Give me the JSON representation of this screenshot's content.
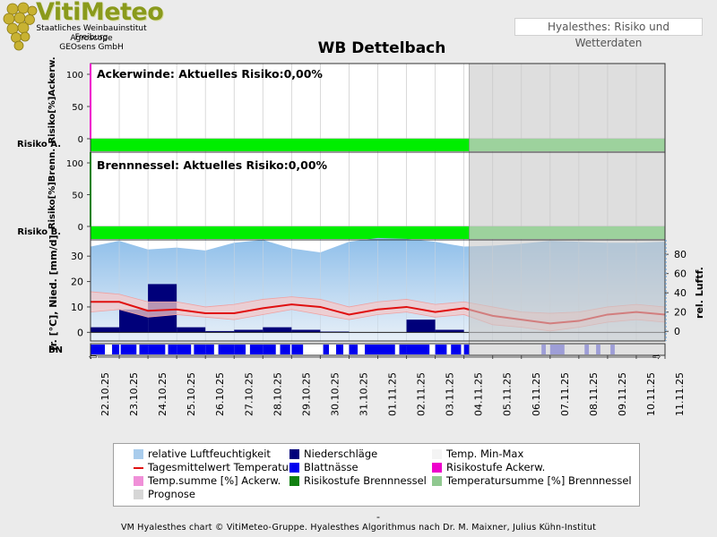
{
  "logo": {
    "brand": "VitiMeteo",
    "line1": "Staatliches Weinbauinstitut Freiburg",
    "line2": "Agroscope",
    "line3": "GEOsens GmbH",
    "icon": "grape-cluster-icon"
  },
  "page_badge": "Hyalesthes: Risiko und Wetterdaten",
  "title": "WB Dettelbach",
  "panels": {
    "ackerwinde": {
      "label": "Ackerwinde: Aktuelles Risiko:0,00%",
      "ylabel": "Risiko[%]Ackerw.",
      "risk_row_label": "Risiko A.",
      "ticks": [
        "100",
        "50",
        "0"
      ]
    },
    "brennnessel": {
      "label": "Brennnessel: Aktuelles Risiko:0,00%",
      "ylabel": "Risiko[%]Brenn.",
      "risk_row_label": "Risiko B.",
      "ticks": [
        "100",
        "50",
        "0"
      ]
    },
    "weather": {
      "ylabel_left": "Tr. [°C], Nied. [mm/d]",
      "ylabel_right": "rel. Luftf.",
      "left_ticks": [
        "30",
        "20",
        "10",
        "0"
      ],
      "right_ticks": [
        "80",
        "60",
        "40",
        "20",
        "0"
      ],
      "bn_label": "BN"
    }
  },
  "x_axis": {
    "dates": [
      "22.10.25",
      "23.10.25",
      "24.10.25",
      "25.10.25",
      "26.10.25",
      "27.10.25",
      "28.10.25",
      "29.10.25",
      "30.10.25",
      "31.10.25",
      "01.11.25",
      "02.11.25",
      "03.11.25",
      "04.11.25",
      "05.11.25",
      "06.11.25",
      "07.11.25",
      "08.11.25",
      "09.11.25",
      "10.11.25",
      "11.11.25"
    ],
    "forecast_from_index": 13
  },
  "chart_data": {
    "type": "line",
    "x": [
      "22.10.25",
      "23.10.25",
      "24.10.25",
      "25.10.25",
      "26.10.25",
      "27.10.25",
      "28.10.25",
      "29.10.25",
      "30.10.25",
      "31.10.25",
      "01.11.25",
      "02.11.25",
      "03.11.25",
      "04.11.25",
      "05.11.25",
      "06.11.25",
      "07.11.25",
      "08.11.25",
      "09.11.25",
      "10.11.25",
      "11.11.25"
    ],
    "risk_ackerwinde": 0.0,
    "risk_brennnessel": 0.0,
    "series": [
      {
        "name": "Tagesmittelwert Temperatur",
        "unit": "°C",
        "values": [
          12,
          12,
          8.5,
          9,
          7.5,
          7.5,
          9.5,
          11,
          10,
          7,
          9,
          10,
          8,
          9.5,
          6.5,
          5,
          3.5,
          4.5,
          7,
          8,
          7
        ]
      },
      {
        "name": "Temp. Min-Max (max)",
        "unit": "°C",
        "values": [
          16,
          15,
          12,
          12,
          10,
          11,
          13,
          14,
          13,
          10,
          12,
          13,
          11,
          12,
          10,
          8,
          7.5,
          8,
          10,
          11,
          10
        ]
      },
      {
        "name": "Temp. Min-Max (min)",
        "unit": "°C",
        "values": [
          8,
          9,
          6,
          7,
          6,
          5,
          7,
          9,
          7,
          5,
          7,
          8,
          6,
          7,
          3,
          2,
          0.5,
          2,
          4,
          5,
          4
        ]
      },
      {
        "name": "Niederschläge",
        "unit": "mm/d",
        "values": [
          2,
          9,
          19,
          2,
          0.5,
          1,
          2,
          1,
          0.3,
          0,
          0,
          5,
          1,
          0,
          0,
          0,
          0,
          0,
          0,
          0,
          0
        ]
      },
      {
        "name": "relative Luftfeuchtigkeit",
        "unit": "%",
        "values": [
          88,
          94,
          85,
          87,
          84,
          92,
          95,
          86,
          82,
          93,
          97,
          96,
          93,
          88,
          89,
          91,
          94,
          93,
          92,
          92,
          93
        ]
      }
    ],
    "blattnaesse_hours": [
      {
        "d": 0,
        "a": 0.0,
        "b": 0.5
      },
      {
        "d": 0,
        "a": 0.75,
        "b": 1.0
      },
      {
        "d": 1,
        "a": 0.05,
        "b": 0.6
      },
      {
        "d": 1,
        "a": 0.7,
        "b": 1.0
      },
      {
        "d": 2,
        "a": 0.0,
        "b": 0.6
      },
      {
        "d": 2,
        "a": 0.7,
        "b": 1.0
      },
      {
        "d": 3,
        "a": 0.0,
        "b": 0.5
      },
      {
        "d": 3,
        "a": 0.6,
        "b": 1.0
      },
      {
        "d": 4,
        "a": 0.0,
        "b": 0.3
      },
      {
        "d": 4,
        "a": 0.45,
        "b": 1.0
      },
      {
        "d": 5,
        "a": 0.0,
        "b": 0.4
      },
      {
        "d": 5,
        "a": 0.55,
        "b": 1.0
      },
      {
        "d": 6,
        "a": 0.0,
        "b": 0.45
      },
      {
        "d": 6,
        "a": 0.6,
        "b": 0.95
      },
      {
        "d": 7,
        "a": 0.0,
        "b": 0.4
      },
      {
        "d": 8,
        "a": 0.1,
        "b": 0.3
      },
      {
        "d": 8,
        "a": 0.55,
        "b": 0.8
      },
      {
        "d": 9,
        "a": 0.0,
        "b": 0.3
      },
      {
        "d": 9,
        "a": 0.55,
        "b": 1.0
      },
      {
        "d": 10,
        "a": 0.0,
        "b": 0.6
      },
      {
        "d": 10,
        "a": 0.75,
        "b": 1.0
      },
      {
        "d": 11,
        "a": 0.0,
        "b": 0.8
      },
      {
        "d": 12,
        "a": 0.0,
        "b": 0.4
      },
      {
        "d": 12,
        "a": 0.55,
        "b": 0.9
      },
      {
        "d": 13,
        "a": 0.0,
        "b": 0.2
      }
    ],
    "blattnaesse_forecast": [
      {
        "d": 15,
        "a": 0.7,
        "b": 0.85
      },
      {
        "d": 16,
        "a": 0.0,
        "b": 0.5
      },
      {
        "d": 17,
        "a": 0.2,
        "b": 0.35
      },
      {
        "d": 17,
        "a": 0.6,
        "b": 0.75
      },
      {
        "d": 18,
        "a": 0.1,
        "b": 0.25
      }
    ],
    "ylim_temp": [
      -2,
      35
    ],
    "ylim_humidity": [
      -10,
      95
    ]
  },
  "legend": [
    {
      "label": "relative Luftfeuchtigkeit",
      "swatch": "#a9ccec"
    },
    {
      "label": "Niederschläge",
      "swatch": "#00007a"
    },
    {
      "label": "Temp. Min-Max",
      "swatch": "#f4f4f4"
    },
    {
      "label": "Tagesmittelwert Temperatur",
      "swatch": "#e01010"
    },
    {
      "label": "Blattnässe",
      "swatch": "#0000ee"
    },
    {
      "label": "Risikostufe Ackerw.",
      "swatch": "#ee00cc"
    },
    {
      "label": "Temp.summe [%] Ackerw.",
      "swatch": "#f090d8"
    },
    {
      "label": "Risikostufe Brennnessel",
      "swatch": "#108010"
    },
    {
      "label": "Temperatursumme [%] Brennnessel",
      "swatch": "#90c890"
    },
    {
      "label": "Prognose",
      "swatch": "#d6d6d6"
    }
  ],
  "colors": {
    "risk_green": "#00ee00",
    "risk_green_forecast": "#5ee05e",
    "forecast_shade": "#c8c8c8",
    "temp_line": "#e01010",
    "precip": "#00007a",
    "leaf_wet": "#0000ee"
  },
  "footer": "VM Hyalesthes chart © VitiMeteo-Gruppe. Hyalesthes Algorithmus nach Dr. M. Maixner, Julius Kühn-Institut",
  "footer_dash": "-"
}
